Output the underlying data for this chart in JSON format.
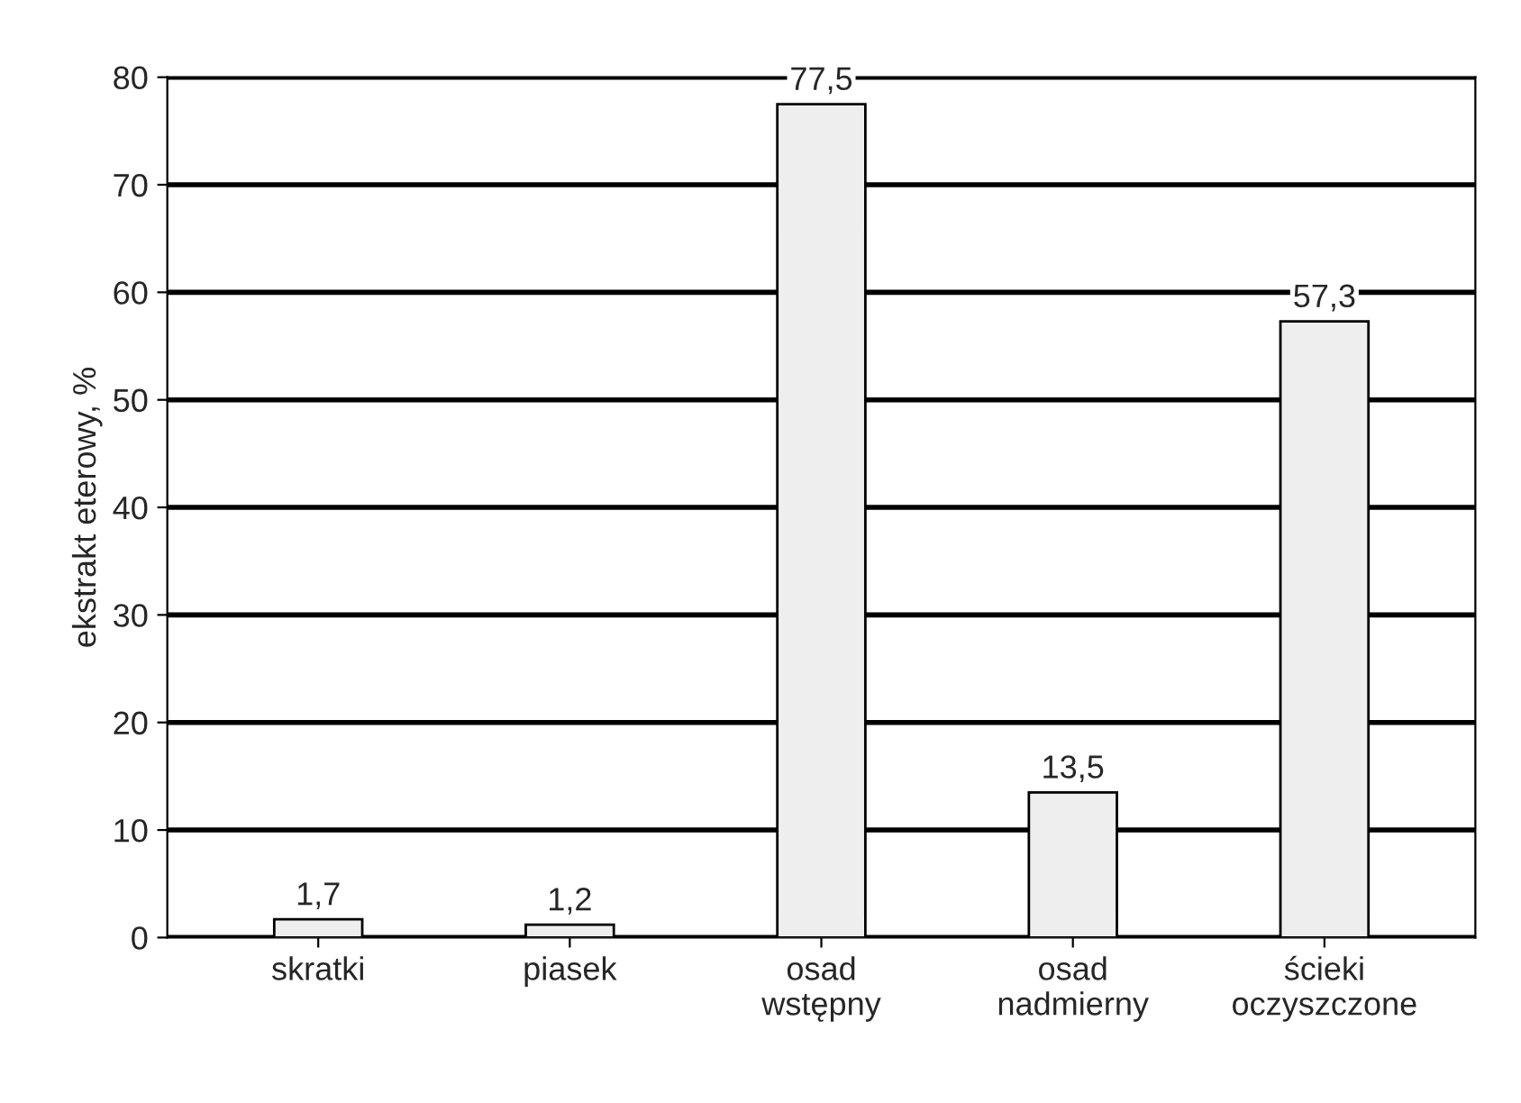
{
  "chart_data": {
    "type": "bar",
    "ylabel": "ekstrakt eterowy, %",
    "categories": [
      "skratki",
      "piasek",
      "osad\nwstępny",
      "osad\nnadmierny",
      "ścieki\noczyszczone"
    ],
    "values": [
      1.7,
      1.2,
      77.5,
      13.5,
      57.3
    ],
    "value_labels": [
      "1,7",
      "1,2",
      "77,5",
      "13,5",
      "57,3"
    ],
    "color": "#eeeeee",
    "ylim": [
      0,
      80
    ],
    "yticks": [
      0,
      10,
      20,
      30,
      40,
      50,
      60,
      70,
      80
    ],
    "grid": "y"
  }
}
